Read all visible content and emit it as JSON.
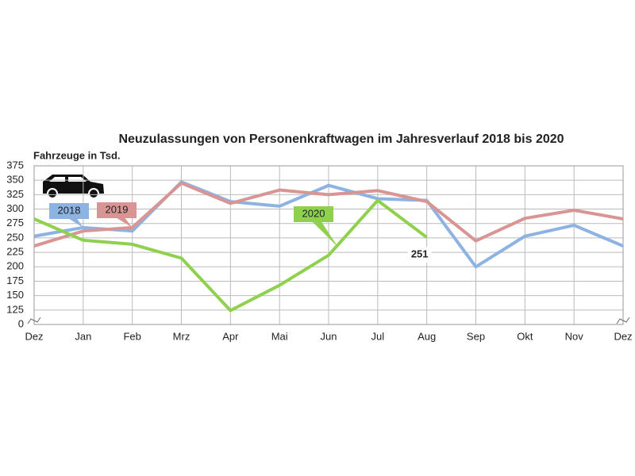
{
  "chart_data": {
    "type": "line",
    "title": "Neuzulassungen von Personenkraftwagen im Jahresverlauf 2018 bis 2020",
    "y_label": "Fahrzeuge in Tsd.",
    "categories": [
      "Dez",
      "Jan",
      "Feb",
      "Mrz",
      "Apr",
      "Mai",
      "Jun",
      "Jul",
      "Aug",
      "Sep",
      "Okt",
      "Nov",
      "Dez"
    ],
    "ylim": [
      0,
      375
    ],
    "yticks": [
      0,
      125,
      150,
      175,
      200,
      225,
      250,
      275,
      300,
      325,
      350,
      375
    ],
    "axis_break": true,
    "grid": true,
    "series": [
      {
        "name": "2018",
        "color": "#8db3e2",
        "values": [
          253,
          268,
          262,
          347,
          313,
          305,
          341,
          318,
          315,
          200,
          253,
          272,
          236
        ]
      },
      {
        "name": "2019",
        "color": "#d99594",
        "values": [
          236,
          262,
          268,
          345,
          310,
          333,
          325,
          332,
          313,
          245,
          284,
          298,
          283
        ]
      },
      {
        "name": "2020",
        "color": "#8fd14f",
        "values": [
          283,
          246,
          239,
          215,
          121,
          168,
          220,
          315,
          251,
          null,
          null,
          null,
          null
        ],
        "value_labels": [
          null,
          null,
          null,
          null,
          null,
          null,
          null,
          null,
          "251",
          null,
          null,
          null,
          null
        ]
      }
    ]
  }
}
